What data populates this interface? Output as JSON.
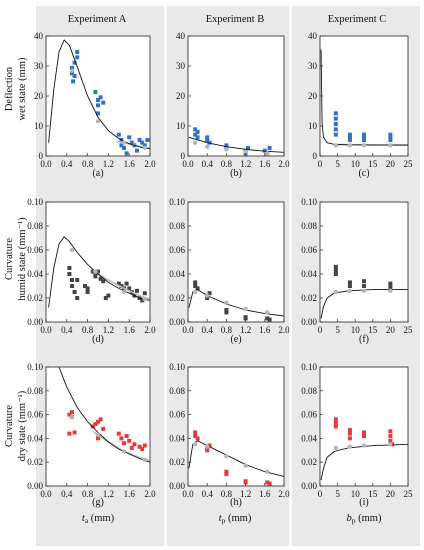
{
  "column_titles": [
    "Experiment A",
    "Experiment B",
    "Experiment C"
  ],
  "row_titles": [
    [
      "Deflection",
      "wet state (mm)"
    ],
    [
      "Curvature",
      "humid state (mm⁻¹)"
    ],
    [
      "Curvature",
      "dry state (mm⁻¹)"
    ]
  ],
  "x_axis_labels": [
    {
      "main": "t",
      "sub": "a",
      "unit": " (mm)"
    },
    {
      "main": "t",
      "sub": "p",
      "unit": " (mm)"
    },
    {
      "main": "b",
      "sub": "p",
      "unit": " (mm)"
    }
  ],
  "panel_labels": [
    "(a)",
    "(b)",
    "(c)",
    "(d)",
    "(e)",
    "(f)",
    "(g)",
    "(h)",
    "(i)"
  ],
  "chart_data": [
    {
      "panel": "(a)",
      "type": "scatter",
      "color": "#2f74c8",
      "xlim": [
        0,
        2.0
      ],
      "ylim": [
        0,
        45
      ],
      "xticks": [
        "0.0",
        "0.4",
        "0.8",
        "1.2",
        "1.6",
        "2.0"
      ],
      "yticks": [
        "0",
        "10",
        "20",
        "30",
        "40"
      ],
      "measured": [
        [
          0.5,
          33
        ],
        [
          0.5,
          31
        ],
        [
          0.55,
          30
        ],
        [
          0.55,
          35
        ],
        [
          0.6,
          37
        ],
        [
          0.6,
          39
        ],
        [
          0.52,
          28
        ],
        [
          0.95,
          24
        ],
        [
          1.0,
          21
        ],
        [
          1.0,
          19
        ],
        [
          1.05,
          22
        ],
        [
          1.1,
          20
        ],
        [
          1.0,
          16
        ],
        [
          1.4,
          8
        ],
        [
          1.45,
          6
        ],
        [
          1.45,
          4
        ],
        [
          1.5,
          3
        ],
        [
          1.6,
          7
        ],
        [
          1.65,
          5
        ],
        [
          1.7,
          4
        ],
        [
          1.75,
          2
        ],
        [
          1.8,
          6
        ],
        [
          1.85,
          5
        ],
        [
          1.9,
          4
        ],
        [
          1.95,
          6
        ],
        [
          1.55,
          1
        ]
      ],
      "fitted": [
        [
          0.5,
          32
        ],
        [
          1.0,
          13
        ],
        [
          1.5,
          5
        ],
        [
          1.9,
          3
        ]
      ],
      "model": [
        [
          0.05,
          5
        ],
        [
          0.15,
          25
        ],
        [
          0.25,
          39
        ],
        [
          0.35,
          43.5
        ],
        [
          0.45,
          41.5
        ],
        [
          0.6,
          33.5
        ],
        [
          0.8,
          22.5
        ],
        [
          1.0,
          14.5
        ],
        [
          1.2,
          9.5
        ],
        [
          1.4,
          6.5
        ],
        [
          1.6,
          4.6
        ],
        [
          1.8,
          3.4
        ],
        [
          2.0,
          2.7
        ]
      ],
      "fit_curve": [
        [
          1.35,
          5.5
        ],
        [
          1.6,
          4.5
        ],
        [
          1.8,
          3.6
        ],
        [
          2.0,
          3.0
        ]
      ]
    },
    {
      "panel": "(b)",
      "type": "scatter",
      "color": "#2f74c8",
      "xlim": [
        0,
        2.0
      ],
      "ylim": [
        0,
        45
      ],
      "xticks": [
        "0.0",
        "0.4",
        "0.8",
        "1.2",
        "1.6",
        "2.0"
      ],
      "yticks": [
        "0",
        "10",
        "20",
        "30",
        "40"
      ],
      "measured": [
        [
          0.15,
          8
        ],
        [
          0.15,
          10
        ],
        [
          0.2,
          7
        ],
        [
          0.2,
          9
        ],
        [
          0.4,
          6
        ],
        [
          0.4,
          7
        ],
        [
          0.45,
          5
        ],
        [
          0.8,
          3
        ],
        [
          0.8,
          4
        ],
        [
          1.2,
          1
        ],
        [
          1.2,
          2
        ],
        [
          1.25,
          3
        ],
        [
          1.6,
          2
        ],
        [
          1.65,
          1
        ],
        [
          1.7,
          3
        ]
      ],
      "fitted": [
        [
          0.15,
          5
        ],
        [
          0.4,
          3.5
        ],
        [
          0.8,
          2.5
        ],
        [
          1.2,
          1.5
        ],
        [
          1.65,
          1
        ]
      ],
      "model": [
        [
          0.02,
          7
        ],
        [
          0.15,
          6.3
        ],
        [
          0.4,
          5
        ],
        [
          0.8,
          3.5
        ],
        [
          1.2,
          2.5
        ],
        [
          1.6,
          1.8
        ],
        [
          2.0,
          1.4
        ]
      ],
      "fit_curve": []
    },
    {
      "panel": "(c)",
      "type": "scatter",
      "color": "#2f74c8",
      "xlim": [
        0,
        25
      ],
      "ylim": [
        0,
        45
      ],
      "xticks": [
        "0",
        "5",
        "10",
        "15",
        "20",
        "25"
      ],
      "yticks": [
        "0",
        "10",
        "20",
        "30",
        "40"
      ],
      "measured": [
        [
          4.5,
          8
        ],
        [
          4.5,
          10
        ],
        [
          4.5,
          12
        ],
        [
          4.5,
          14
        ],
        [
          4.5,
          16
        ],
        [
          8.5,
          6
        ],
        [
          8.5,
          7
        ],
        [
          8.5,
          8
        ],
        [
          12.5,
          6
        ],
        [
          12.5,
          7
        ],
        [
          12.5,
          8
        ],
        [
          20,
          6
        ],
        [
          20,
          7
        ],
        [
          20,
          8
        ]
      ],
      "fitted": [
        [
          4.5,
          4
        ],
        [
          8.5,
          4
        ],
        [
          12.5,
          4
        ],
        [
          20,
          4
        ]
      ],
      "model": [
        [
          0.3,
          40
        ],
        [
          0.6,
          12
        ],
        [
          1,
          7
        ],
        [
          2,
          5
        ],
        [
          4,
          4.4
        ],
        [
          8,
          4.2
        ],
        [
          15,
          4.1
        ],
        [
          25,
          4.1
        ]
      ],
      "fit_curve": [
        [
          4,
          4.3
        ],
        [
          25,
          4.1
        ]
      ]
    },
    {
      "panel": "(d)",
      "type": "scatter",
      "color": "#444444",
      "xlim": [
        0,
        2.0
      ],
      "ylim": [
        0,
        0.1
      ],
      "xticks": [
        "0.0",
        "0.4",
        "0.8",
        "1.2",
        "1.6",
        "2.0"
      ],
      "yticks": [
        "0.00",
        "0.02",
        "0.04",
        "0.06",
        "0.08",
        "0.10"
      ],
      "measured": [
        [
          0.45,
          0.045
        ],
        [
          0.45,
          0.04
        ],
        [
          0.5,
          0.035
        ],
        [
          0.5,
          0.03
        ],
        [
          0.55,
          0.025
        ],
        [
          0.6,
          0.02
        ],
        [
          0.6,
          0.035
        ],
        [
          0.75,
          0.03
        ],
        [
          0.8,
          0.028
        ],
        [
          0.8,
          0.025
        ],
        [
          0.9,
          0.042
        ],
        [
          0.95,
          0.04
        ],
        [
          0.95,
          0.038
        ],
        [
          1.0,
          0.042
        ],
        [
          1.05,
          0.036
        ],
        [
          1.1,
          0.034
        ],
        [
          1.15,
          0.02
        ],
        [
          1.2,
          0.022
        ],
        [
          1.4,
          0.032
        ],
        [
          1.45,
          0.03
        ],
        [
          1.5,
          0.028
        ],
        [
          1.55,
          0.032
        ],
        [
          1.6,
          0.028
        ],
        [
          1.65,
          0.025
        ],
        [
          1.7,
          0.022
        ],
        [
          1.75,
          0.026
        ],
        [
          1.8,
          0.02
        ],
        [
          1.85,
          0.018
        ],
        [
          1.9,
          0.024
        ]
      ],
      "fitted": [
        [
          0.5,
          0.06
        ],
        [
          0.95,
          0.042
        ],
        [
          1.5,
          0.025
        ],
        [
          1.9,
          0.019
        ]
      ],
      "model": [
        [
          0.05,
          0.012
        ],
        [
          0.15,
          0.045
        ],
        [
          0.25,
          0.065
        ],
        [
          0.35,
          0.071
        ],
        [
          0.45,
          0.067
        ],
        [
          0.6,
          0.058
        ],
        [
          0.8,
          0.048
        ],
        [
          1.0,
          0.04
        ],
        [
          1.2,
          0.033
        ],
        [
          1.4,
          0.028
        ],
        [
          1.6,
          0.024
        ],
        [
          1.8,
          0.02
        ],
        [
          2.0,
          0.018
        ]
      ],
      "fit_curve": [
        [
          0.9,
          0.043
        ],
        [
          1.2,
          0.035
        ],
        [
          1.5,
          0.028
        ],
        [
          1.8,
          0.022
        ],
        [
          2.0,
          0.019
        ]
      ]
    },
    {
      "panel": "(e)",
      "type": "scatter",
      "color": "#444444",
      "xlim": [
        0,
        2.0
      ],
      "ylim": [
        0,
        0.1
      ],
      "xticks": [
        "0.0",
        "0.4",
        "0.8",
        "1.2",
        "1.6",
        "2.0"
      ],
      "yticks": [
        "0.00",
        "0.02",
        "0.04",
        "0.06",
        "0.08",
        "0.10"
      ],
      "measured": [
        [
          0.15,
          0.033
        ],
        [
          0.15,
          0.03
        ],
        [
          0.2,
          0.028
        ],
        [
          0.4,
          0.022
        ],
        [
          0.4,
          0.02
        ],
        [
          0.45,
          0.024
        ],
        [
          0.8,
          0.01
        ],
        [
          0.8,
          0.008
        ],
        [
          1.2,
          0.004
        ],
        [
          1.2,
          0.003
        ],
        [
          1.65,
          0.003
        ],
        [
          1.7,
          0.002
        ]
      ],
      "fitted": [
        [
          0.15,
          0.025
        ],
        [
          0.4,
          0.022
        ],
        [
          0.8,
          0.016
        ],
        [
          1.2,
          0.011
        ],
        [
          1.65,
          0.008
        ]
      ],
      "model": [
        [
          0.02,
          0.012
        ],
        [
          0.1,
          0.025
        ],
        [
          0.2,
          0.027
        ],
        [
          0.4,
          0.022
        ],
        [
          0.8,
          0.015
        ],
        [
          1.2,
          0.01
        ],
        [
          1.6,
          0.007
        ],
        [
          2.0,
          0.005
        ]
      ],
      "fit_curve": []
    },
    {
      "panel": "(f)",
      "type": "scatter",
      "color": "#444444",
      "xlim": [
        0,
        25
      ],
      "ylim": [
        0,
        0.1
      ],
      "xticks": [
        "0",
        "5",
        "10",
        "15",
        "20",
        "25"
      ],
      "yticks": [
        "0.00",
        "0.02",
        "0.04",
        "0.06",
        "0.08",
        "0.10"
      ],
      "measured": [
        [
          4.5,
          0.04
        ],
        [
          4.5,
          0.043
        ],
        [
          4.5,
          0.046
        ],
        [
          8.5,
          0.03
        ],
        [
          8.5,
          0.033
        ],
        [
          12.5,
          0.03
        ],
        [
          12.5,
          0.034
        ],
        [
          20,
          0.029
        ],
        [
          20,
          0.032
        ]
      ],
      "fitted": [
        [
          4.5,
          0.025
        ],
        [
          8.5,
          0.026
        ],
        [
          12.5,
          0.026
        ],
        [
          20,
          0.026
        ]
      ],
      "model": [
        [
          0.3,
          0.003
        ],
        [
          1,
          0.013
        ],
        [
          2,
          0.02
        ],
        [
          4,
          0.024
        ],
        [
          8,
          0.026
        ],
        [
          15,
          0.027
        ],
        [
          25,
          0.027
        ]
      ],
      "fit_curve": []
    },
    {
      "panel": "(g)",
      "type": "scatter",
      "color": "#e83a3a",
      "xlim": [
        0,
        2.0
      ],
      "ylim": [
        0,
        0.1
      ],
      "xticks": [
        "0.0",
        "0.4",
        "0.8",
        "1.2",
        "1.6",
        "2.0"
      ],
      "yticks": [
        "0.00",
        "0.02",
        "0.04",
        "0.06",
        "0.08",
        "0.10"
      ],
      "measured": [
        [
          0.45,
          0.06
        ],
        [
          0.5,
          0.058
        ],
        [
          0.5,
          0.062
        ],
        [
          0.55,
          0.045
        ],
        [
          0.45,
          0.044
        ],
        [
          0.9,
          0.05
        ],
        [
          0.95,
          0.052
        ],
        [
          1.0,
          0.054
        ],
        [
          1.05,
          0.056
        ],
        [
          1.1,
          0.048
        ],
        [
          1.0,
          0.04
        ],
        [
          1.4,
          0.044
        ],
        [
          1.45,
          0.04
        ],
        [
          1.5,
          0.036
        ],
        [
          1.55,
          0.042
        ],
        [
          1.6,
          0.038
        ],
        [
          1.65,
          0.032
        ],
        [
          1.7,
          0.035
        ],
        [
          1.8,
          0.033
        ],
        [
          1.85,
          0.031
        ],
        [
          1.9,
          0.034
        ]
      ],
      "fitted": [
        [
          0.5,
          0.058
        ],
        [
          1.0,
          0.043
        ],
        [
          1.5,
          0.029
        ],
        [
          1.9,
          0.022
        ]
      ],
      "model": [
        [
          0.1,
          0.12
        ],
        [
          0.25,
          0.1
        ],
        [
          0.4,
          0.083
        ],
        [
          0.6,
          0.066
        ],
        [
          0.8,
          0.054
        ],
        [
          1.0,
          0.045
        ],
        [
          1.2,
          0.037
        ],
        [
          1.4,
          0.031
        ],
        [
          1.6,
          0.027
        ],
        [
          1.8,
          0.023
        ],
        [
          2.0,
          0.02
        ]
      ],
      "fit_curve": [
        [
          0.9,
          0.046
        ],
        [
          1.2,
          0.037
        ],
        [
          1.5,
          0.029
        ],
        [
          1.8,
          0.024
        ],
        [
          2.0,
          0.021
        ]
      ]
    },
    {
      "panel": "(h)",
      "type": "scatter",
      "color": "#e83a3a",
      "xlim": [
        0,
        2.0
      ],
      "ylim": [
        0,
        0.1
      ],
      "xticks": [
        "0.0",
        "0.4",
        "0.8",
        "1.2",
        "1.6",
        "2.0"
      ],
      "yticks": [
        "0.00",
        "0.02",
        "0.04",
        "0.06",
        "0.08",
        "0.10"
      ],
      "measured": [
        [
          0.15,
          0.045
        ],
        [
          0.15,
          0.042
        ],
        [
          0.2,
          0.04
        ],
        [
          0.4,
          0.032
        ],
        [
          0.4,
          0.03
        ],
        [
          0.45,
          0.034
        ],
        [
          0.8,
          0.012
        ],
        [
          0.8,
          0.01
        ],
        [
          1.2,
          0.004
        ],
        [
          1.2,
          0.003
        ],
        [
          1.65,
          0.003
        ],
        [
          1.7,
          0.002
        ]
      ],
      "fitted": [
        [
          0.15,
          0.035
        ],
        [
          0.4,
          0.033
        ],
        [
          0.8,
          0.025
        ],
        [
          1.2,
          0.017
        ],
        [
          1.65,
          0.012
        ]
      ],
      "model": [
        [
          0.02,
          0.015
        ],
        [
          0.1,
          0.035
        ],
        [
          0.2,
          0.038
        ],
        [
          0.4,
          0.034
        ],
        [
          0.8,
          0.026
        ],
        [
          1.2,
          0.018
        ],
        [
          1.6,
          0.012
        ],
        [
          2.0,
          0.008
        ]
      ],
      "fit_curve": []
    },
    {
      "panel": "(i)",
      "type": "scatter",
      "color": "#e83a3a",
      "xlim": [
        0,
        25
      ],
      "ylim": [
        0,
        0.1
      ],
      "xticks": [
        "0",
        "5",
        "10",
        "15",
        "20",
        "25"
      ],
      "yticks": [
        "0.00",
        "0.02",
        "0.04",
        "0.06",
        "0.08",
        "0.10"
      ],
      "measured": [
        [
          4.5,
          0.05
        ],
        [
          4.5,
          0.053
        ],
        [
          4.5,
          0.056
        ],
        [
          8.5,
          0.04
        ],
        [
          8.5,
          0.044
        ],
        [
          8.5,
          0.047
        ],
        [
          12.5,
          0.042
        ],
        [
          12.5,
          0.045
        ],
        [
          20,
          0.038
        ],
        [
          20,
          0.042
        ],
        [
          20,
          0.046
        ],
        [
          20.5,
          0.035
        ]
      ],
      "fitted": [
        [
          4.5,
          0.032
        ],
        [
          8.5,
          0.033
        ],
        [
          12.5,
          0.034
        ],
        [
          20,
          0.035
        ]
      ],
      "model": [
        [
          0.3,
          0.005
        ],
        [
          1,
          0.015
        ],
        [
          2,
          0.024
        ],
        [
          4,
          0.029
        ],
        [
          8,
          0.032
        ],
        [
          15,
          0.034
        ],
        [
          25,
          0.035
        ]
      ],
      "fit_curve": []
    }
  ]
}
